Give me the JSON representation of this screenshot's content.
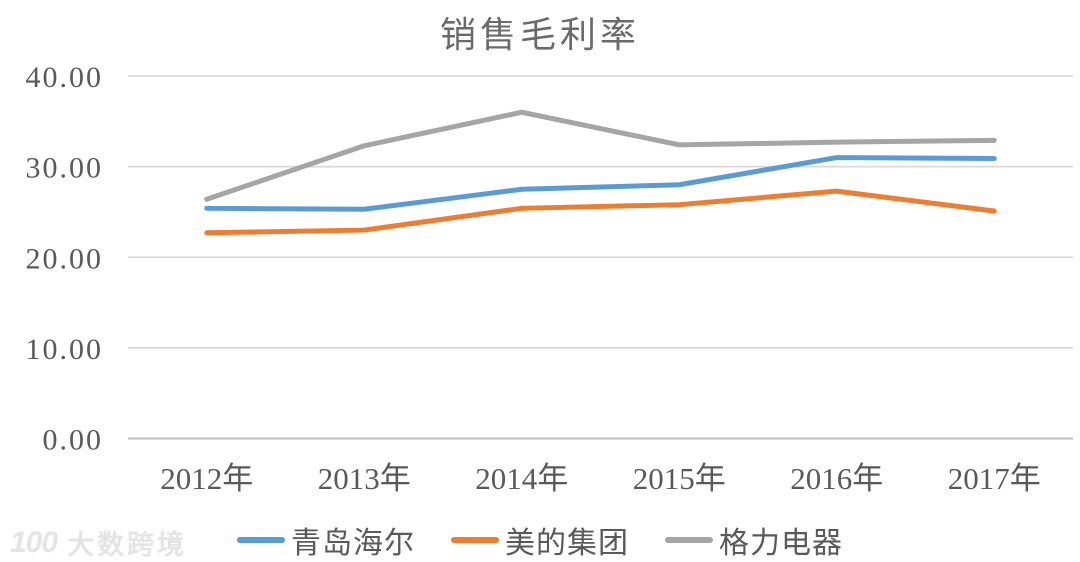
{
  "chart_data": {
    "type": "line",
    "title": "销售毛利率",
    "categories": [
      "2012年",
      "2013年",
      "2014年",
      "2015年",
      "2016年",
      "2017年"
    ],
    "series": [
      {
        "name": "青岛海尔",
        "color": "#5B9BD5",
        "values": [
          25.4,
          25.3,
          27.5,
          28.0,
          31.0,
          30.9
        ]
      },
      {
        "name": "美的集团",
        "color": "#ED7D31",
        "values": [
          22.7,
          23.0,
          25.4,
          25.8,
          27.3,
          25.1
        ]
      },
      {
        "name": "格力电器",
        "color": "#A5A5A5",
        "values": [
          26.4,
          32.3,
          36.0,
          32.4,
          32.7,
          32.9
        ]
      }
    ],
    "ylim": [
      0,
      40
    ],
    "ytick_values": [
      40,
      30,
      20,
      10,
      0
    ],
    "ytick_labels": [
      "40.00",
      "30.00",
      "20.00",
      "10.00",
      "0.00"
    ],
    "grid": true,
    "legend_position": "bottom",
    "title_color": "#6a6a6a",
    "axis_text_color": "#595959",
    "gridline_color": "#D9D9D9",
    "axisline_color": "#BFBFBF"
  },
  "watermark": {
    "logo": "100",
    "text": "大数跨境",
    "color": "#E4E4E4"
  }
}
